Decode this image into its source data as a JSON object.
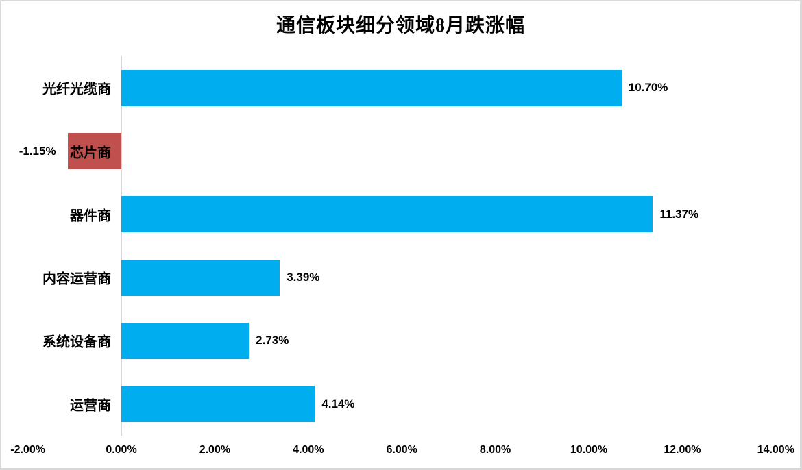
{
  "title": "通信板块细分领域8月跌涨幅",
  "chart_data": {
    "type": "bar",
    "orientation": "horizontal",
    "title": "通信板块细分领域8月跌涨幅",
    "categories": [
      "光纤光缆商",
      "芯片商",
      "器件商",
      "内容运营商",
      "系统设备商",
      "运营商"
    ],
    "values": [
      10.7,
      -1.15,
      11.37,
      3.39,
      2.73,
      4.14
    ],
    "value_labels": [
      "10.70%",
      "-1.15%",
      "11.37%",
      "3.39%",
      "2.73%",
      "4.14%"
    ],
    "xlabel": "",
    "ylabel": "",
    "xlim": [
      -2,
      14
    ],
    "x_ticks": [
      {
        "value": -2,
        "label": "-2.00%"
      },
      {
        "value": 0,
        "label": "0.00%"
      },
      {
        "value": 2,
        "label": "2.00%"
      },
      {
        "value": 4,
        "label": "4.00%"
      },
      {
        "value": 6,
        "label": "6.00%"
      },
      {
        "value": 8,
        "label": "8.00%"
      },
      {
        "value": 10,
        "label": "10.00%"
      },
      {
        "value": 12,
        "label": "12.00%"
      },
      {
        "value": 14,
        "label": "14.00%"
      }
    ],
    "grid": false,
    "legend": false,
    "colors": {
      "positive_bar": "#00AEEF",
      "negative_bar": "#C0504D",
      "axis_line": "#D6D6D6",
      "text": "#000000"
    }
  }
}
